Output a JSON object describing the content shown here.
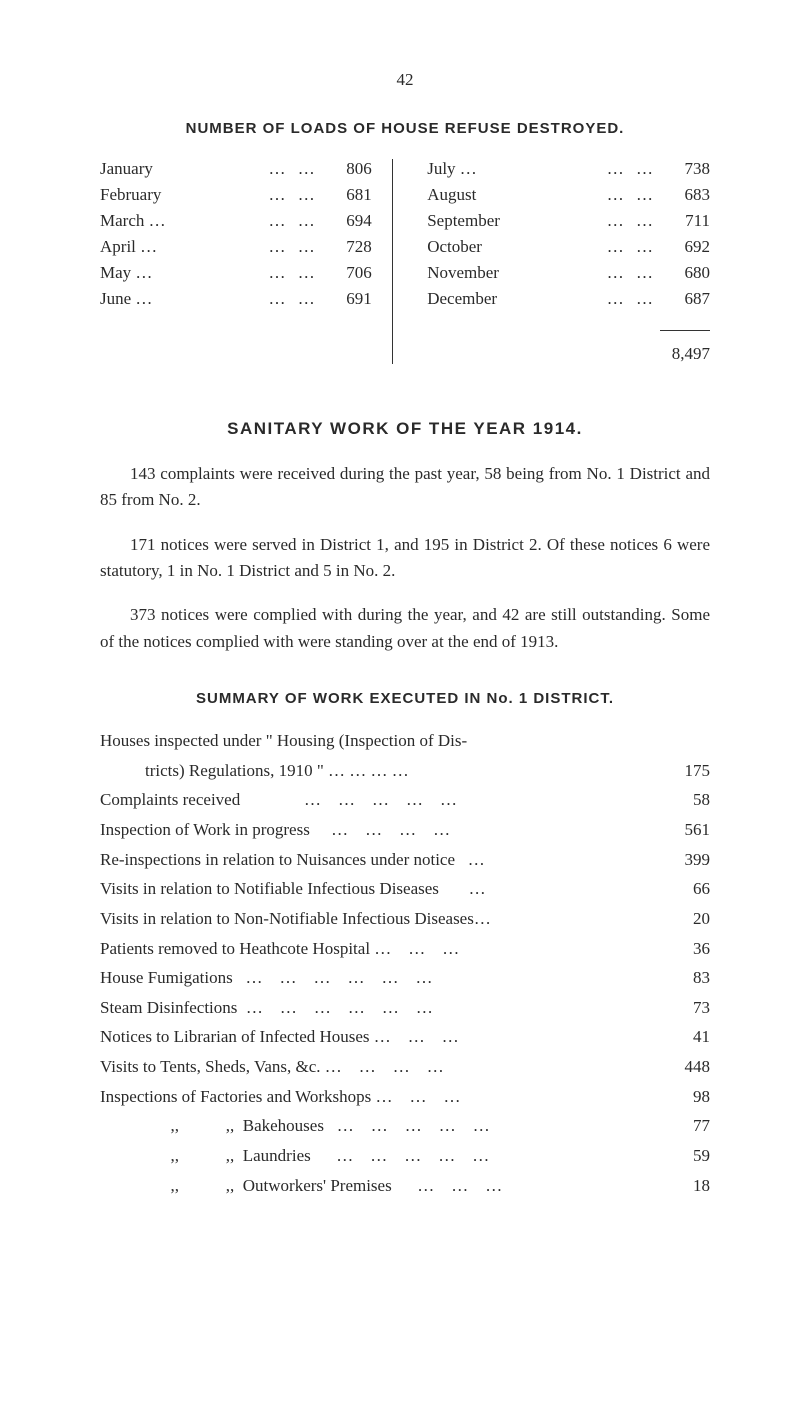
{
  "page_number": "42",
  "section1": {
    "title": "NUMBER OF LOADS OF HOUSE REFUSE DESTROYED.",
    "left_col": [
      {
        "label": "January",
        "dots": "…    …",
        "value": "806"
      },
      {
        "label": "February",
        "dots": "…    …",
        "value": "681"
      },
      {
        "label": "March …",
        "dots": "…    …",
        "value": "694"
      },
      {
        "label": "April  …",
        "dots": "…    …",
        "value": "728"
      },
      {
        "label": "May   …",
        "dots": "…    …",
        "value": "706"
      },
      {
        "label": "June   …",
        "dots": "…    …",
        "value": "691"
      }
    ],
    "right_col": [
      {
        "label": "July    …",
        "dots": "…    …",
        "value": "738"
      },
      {
        "label": "August",
        "dots": "…    …",
        "value": "683"
      },
      {
        "label": "September",
        "dots": "…    …",
        "value": "711"
      },
      {
        "label": "October",
        "dots": "…    …",
        "value": "692"
      },
      {
        "label": "November",
        "dots": "…    …",
        "value": "680"
      },
      {
        "label": "December",
        "dots": "…    …",
        "value": "687"
      }
    ],
    "total": "8,497"
  },
  "section2": {
    "heading": "SANITARY WORK OF THE YEAR 1914.",
    "para1": "143 complaints were received during the past year, 58 being from No. 1 District and 85 from No. 2.",
    "para2": "171 notices were served in District 1, and 195 in District 2. Of these notices 6 were statutory, 1 in No. 1 District and 5 in No. 2.",
    "para3": "373 notices were complied with during the year, and 42 are still outstanding. Some of the notices complied with were standing over at the end of 1913."
  },
  "section3": {
    "title": "SUMMARY OF WORK EXECUTED IN No. 1 DISTRICT.",
    "items": [
      {
        "label": "Houses inspected under \" Housing (Inspection of Dis-",
        "label2": "tricts) Regulations, 1910 \"    …    …    …    …",
        "value": "175",
        "wrap": true
      },
      {
        "label": "Complaints received               …    …    …    …    …",
        "value": "58"
      },
      {
        "label": "Inspection of Work in progress     …    …    …    …",
        "value": "561"
      },
      {
        "label": "Re-inspections in relation to Nuisances under notice   …",
        "value": "399"
      },
      {
        "label": "Visits in relation to Notifiable Infectious Diseases       …",
        "value": "66"
      },
      {
        "label": "Visits in relation to Non-Notifiable Infectious Diseases…",
        "value": "20"
      },
      {
        "label": "Patients removed to Heathcote Hospital …    …    …",
        "value": "36"
      },
      {
        "label": "House Fumigations   …    …    …    …    …    …",
        "value": "83"
      },
      {
        "label": "Steam Disinfections  …    …    …    …    …    …",
        "value": "73"
      },
      {
        "label": "Notices to Librarian of Infected Houses …    …    …",
        "value": "41"
      },
      {
        "label": "Visits to Tents, Sheds, Vans, &c. …    …    …    …",
        "value": "448"
      },
      {
        "label": "Inspections of Factories and Workshops …    …    …",
        "value": "98"
      },
      {
        "label": "      ,,           ,,  Bakehouses   …    …    …    …    …",
        "value": "77",
        "indent": true
      },
      {
        "label": "      ,,           ,,  Laundries      …    …    …    …    …",
        "value": "59",
        "indent": true
      },
      {
        "label": "      ,,           ,,  Outworkers' Premises      …    …    …",
        "value": "18",
        "indent": true
      }
    ]
  }
}
